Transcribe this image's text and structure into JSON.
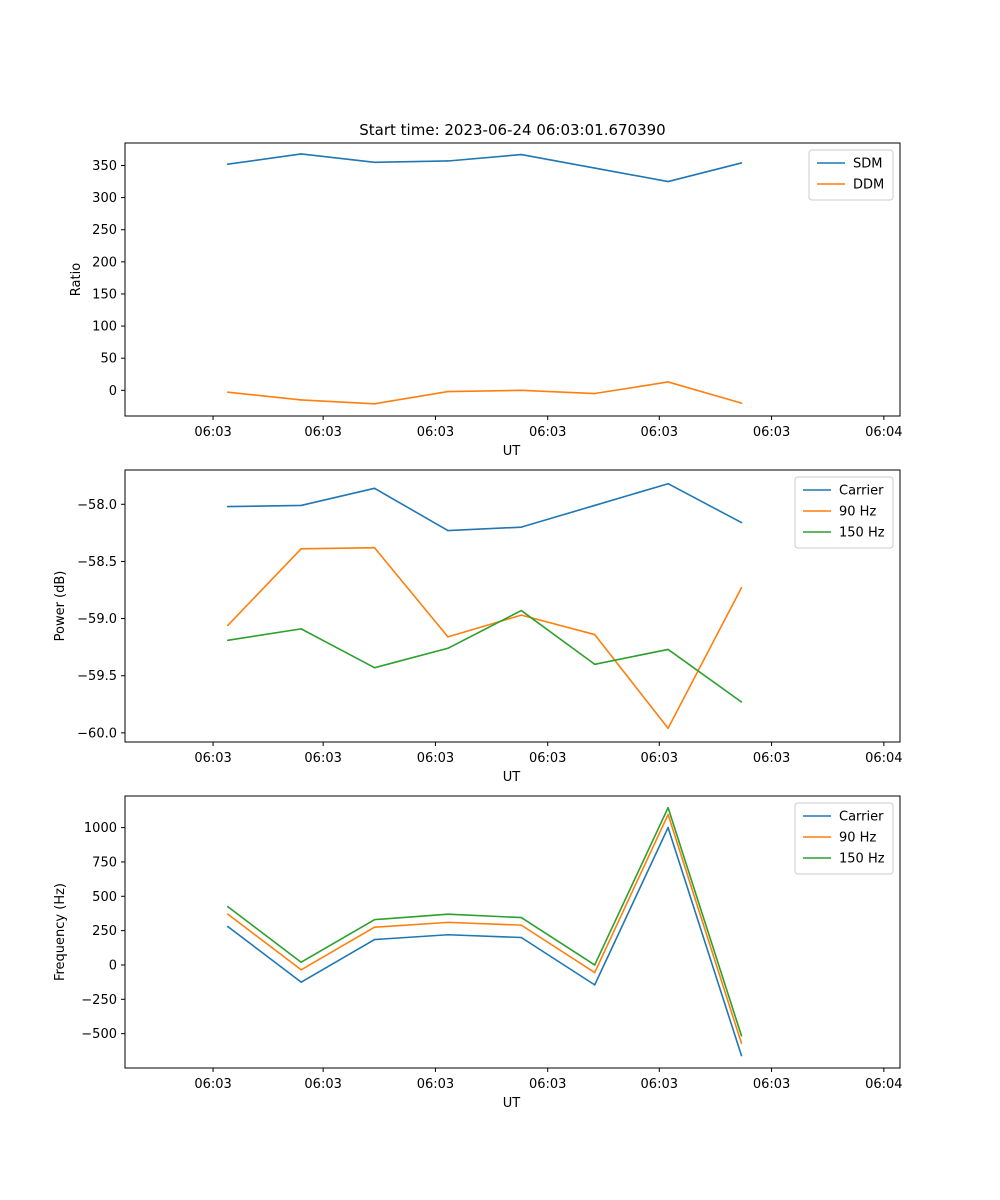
{
  "figure": {
    "title": "Start time: 2023-06-24 06:03:01.670390"
  },
  "chart_data": [
    {
      "type": "line",
      "title": "Start time: 2023-06-24 06:03:01.670390",
      "xlabel": "UT",
      "ylabel": "Ratio",
      "x_tick_labels": [
        "06:03",
        "06:03",
        "06:03",
        "06:03",
        "06:03",
        "06:03",
        "06:04"
      ],
      "x_index": [
        1,
        2,
        3,
        4,
        5,
        6,
        7,
        8
      ],
      "xlim": [
        0.2,
        9.38
      ],
      "ylim": [
        -40,
        385
      ],
      "y_ticks": [
        0,
        50,
        100,
        150,
        200,
        250,
        300,
        350
      ],
      "legend": "top-right",
      "series": [
        {
          "name": "SDM",
          "color": "#1f77b4",
          "values": [
            352,
            368,
            355,
            357,
            367,
            346,
            325,
            354
          ]
        },
        {
          "name": "DDM",
          "color": "#ff7f0e",
          "values": [
            -3,
            -15,
            -21,
            -2,
            0,
            -5,
            13,
            -20
          ]
        }
      ]
    },
    {
      "type": "line",
      "xlabel": "UT",
      "ylabel": "Power (dB)",
      "x_tick_labels": [
        "06:03",
        "06:03",
        "06:03",
        "06:03",
        "06:03",
        "06:03",
        "06:04"
      ],
      "x_index": [
        1,
        2,
        3,
        4,
        5,
        6,
        7,
        8
      ],
      "xlim": [
        0.2,
        9.38
      ],
      "ylim": [
        -60.08,
        -57.7
      ],
      "y_ticks": [
        -60.0,
        -59.5,
        -59.0,
        -58.5,
        -58.0
      ],
      "y_tick_labels": [
        "−60.0",
        "−59.5",
        "−59.0",
        "−58.5",
        "−58.0"
      ],
      "legend": "top-right",
      "series": [
        {
          "name": "Carrier",
          "color": "#1f77b4",
          "values": [
            -58.02,
            -58.01,
            -57.86,
            -58.23,
            -58.2,
            -58.01,
            -57.82,
            -58.16
          ]
        },
        {
          "name": "90 Hz",
          "color": "#ff7f0e",
          "values": [
            -59.06,
            -58.39,
            -58.38,
            -59.16,
            -58.97,
            -59.14,
            -59.96,
            -58.73
          ]
        },
        {
          "name": "150 Hz",
          "color": "#2ca02c",
          "values": [
            -59.19,
            -59.09,
            -59.43,
            -59.26,
            -58.93,
            -59.4,
            -59.27,
            -59.73
          ]
        }
      ]
    },
    {
      "type": "line",
      "xlabel": "UT",
      "ylabel": "Frequency (Hz)",
      "x_tick_labels": [
        "06:03",
        "06:03",
        "06:03",
        "06:03",
        "06:03",
        "06:03",
        "06:04"
      ],
      "x_index": [
        1,
        2,
        3,
        4,
        5,
        6,
        7,
        8
      ],
      "xlim": [
        0.2,
        9.38
      ],
      "ylim": [
        -750,
        1230
      ],
      "y_ticks": [
        -500,
        -250,
        0,
        250,
        500,
        750,
        1000
      ],
      "y_tick_labels": [
        "−500",
        "−250",
        "0",
        "250",
        "500",
        "750",
        "1000"
      ],
      "legend": "top-right",
      "series": [
        {
          "name": "Carrier",
          "color": "#1f77b4",
          "values": [
            280,
            -125,
            185,
            220,
            200,
            -145,
            1000,
            -660
          ]
        },
        {
          "name": "90 Hz",
          "color": "#ff7f0e",
          "values": [
            370,
            -35,
            275,
            310,
            290,
            -55,
            1095,
            -570
          ]
        },
        {
          "name": "150 Hz",
          "color": "#2ca02c",
          "values": [
            425,
            20,
            330,
            370,
            345,
            0,
            1145,
            -515
          ]
        }
      ]
    }
  ]
}
